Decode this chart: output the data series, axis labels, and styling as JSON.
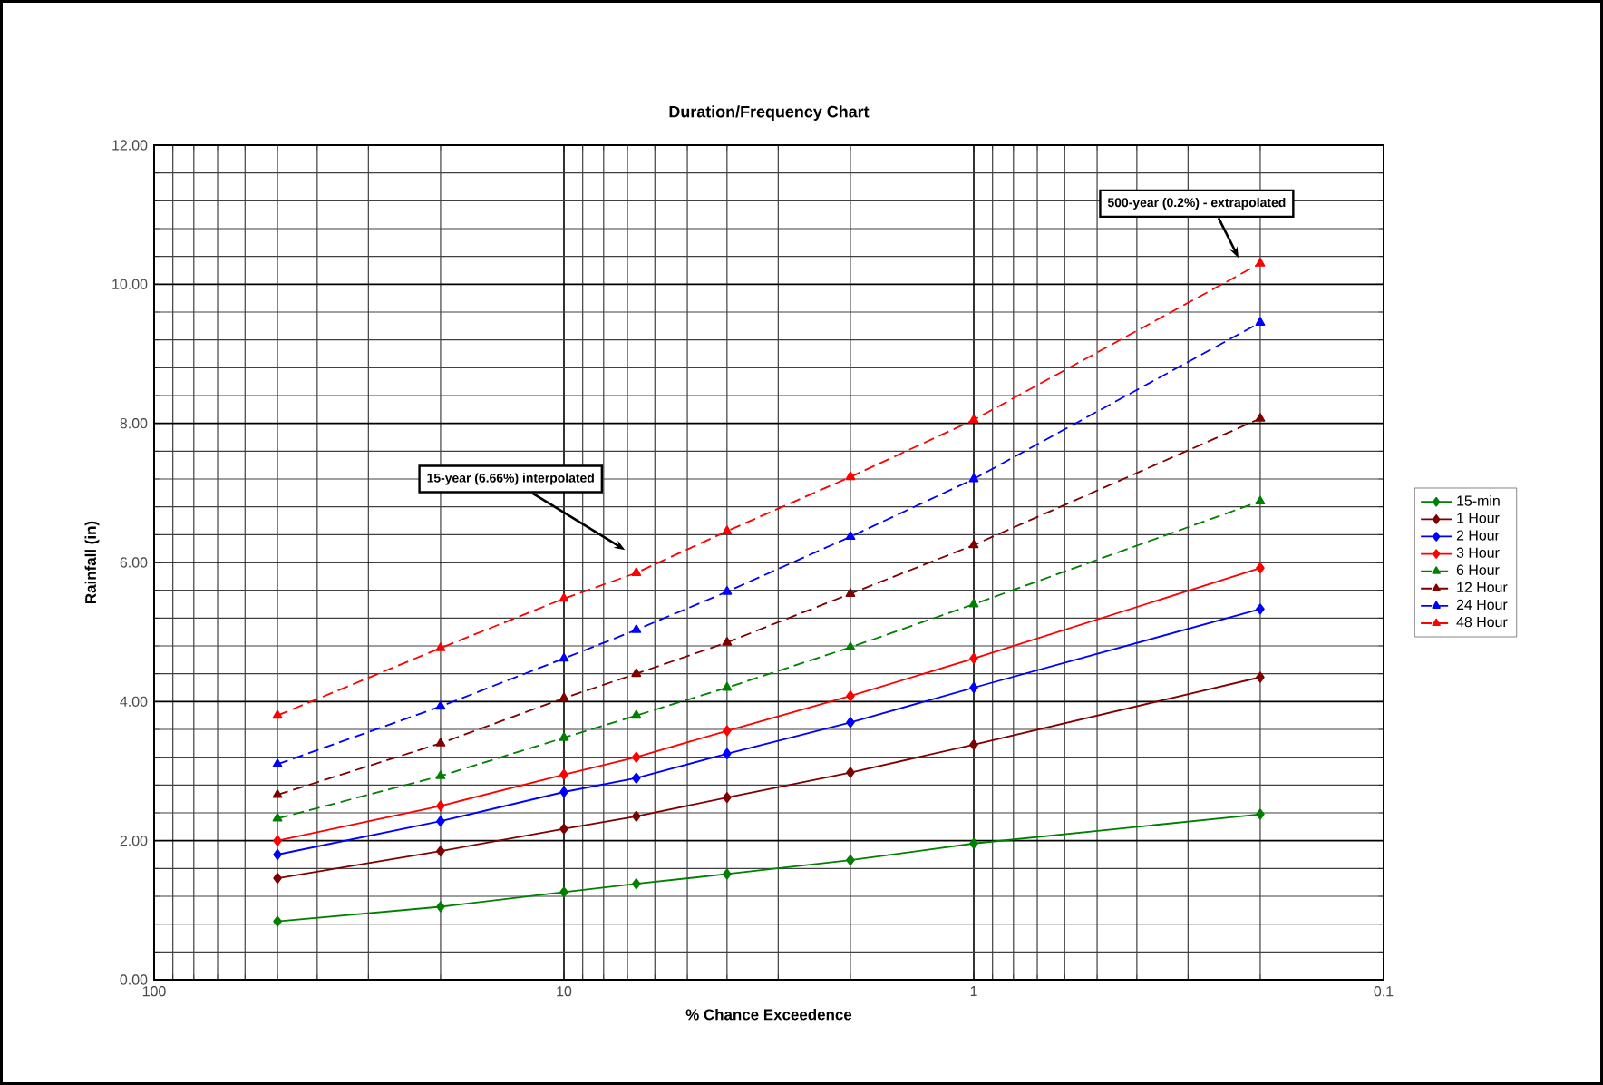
{
  "chart_data": {
    "type": "line",
    "title": "Duration/Frequency Chart",
    "xlabel": "% Chance Exceedence",
    "ylabel": "Rainfall (in)",
    "x": [
      50,
      20,
      10,
      6.66,
      4,
      2,
      1,
      0.2
    ],
    "series": [
      {
        "name": "15-min",
        "color": "#008000",
        "marker": "diamond",
        "line_style": "solid",
        "values": [
          0.84,
          1.05,
          1.26,
          1.38,
          1.52,
          1.72,
          1.96,
          2.38
        ]
      },
      {
        "name": "1 Hour",
        "color": "#800000",
        "marker": "diamond",
        "line_style": "solid",
        "values": [
          1.46,
          1.85,
          2.17,
          2.35,
          2.62,
          2.98,
          3.38,
          4.35
        ]
      },
      {
        "name": "2 Hour",
        "color": "#0000ff",
        "marker": "diamond",
        "line_style": "solid",
        "values": [
          1.8,
          2.28,
          2.7,
          2.9,
          3.25,
          3.7,
          4.2,
          5.33
        ]
      },
      {
        "name": "3 Hour",
        "color": "#ff0000",
        "marker": "diamond",
        "line_style": "solid",
        "values": [
          2.0,
          2.5,
          2.95,
          3.2,
          3.58,
          4.08,
          4.62,
          5.92
        ]
      },
      {
        "name": "6 Hour",
        "color": "#008000",
        "marker": "triangle",
        "line_style": "dashed",
        "values": [
          2.32,
          2.93,
          3.48,
          3.8,
          4.2,
          4.78,
          5.4,
          6.88
        ]
      },
      {
        "name": "12 Hour",
        "color": "#800000",
        "marker": "triangle",
        "line_style": "dashed",
        "values": [
          2.66,
          3.4,
          4.05,
          4.4,
          4.85,
          5.55,
          6.25,
          8.07
        ]
      },
      {
        "name": "24 Hour",
        "color": "#0000ff",
        "marker": "triangle",
        "line_style": "dashed",
        "values": [
          3.1,
          3.93,
          4.62,
          5.03,
          5.58,
          6.37,
          7.2,
          9.45
        ]
      },
      {
        "name": "48 Hour",
        "color": "#ff0000",
        "marker": "triangle",
        "line_style": "dashed",
        "values": [
          3.8,
          4.77,
          5.48,
          5.85,
          6.45,
          7.23,
          8.05,
          10.3
        ]
      }
    ],
    "log": "x",
    "xlim": [
      100,
      0.1
    ],
    "xticks": [
      100,
      10,
      1,
      0.1
    ],
    "ylim": [
      0,
      12
    ],
    "yticks": [
      {
        "value": 0,
        "label": "0.00"
      },
      {
        "value": 2,
        "label": "2.00"
      },
      {
        "value": 4,
        "label": "4.00"
      },
      {
        "value": 6,
        "label": "6.00"
      },
      {
        "value": 8,
        "label": "8.00"
      },
      {
        "value": 10,
        "label": "10.00"
      },
      {
        "value": 12,
        "label": "12.00"
      }
    ],
    "grid": true,
    "legend": "right",
    "annotations": [
      "15-year (6.66%) interpolated",
      "500-year (0.2%) - extrapolated"
    ]
  }
}
